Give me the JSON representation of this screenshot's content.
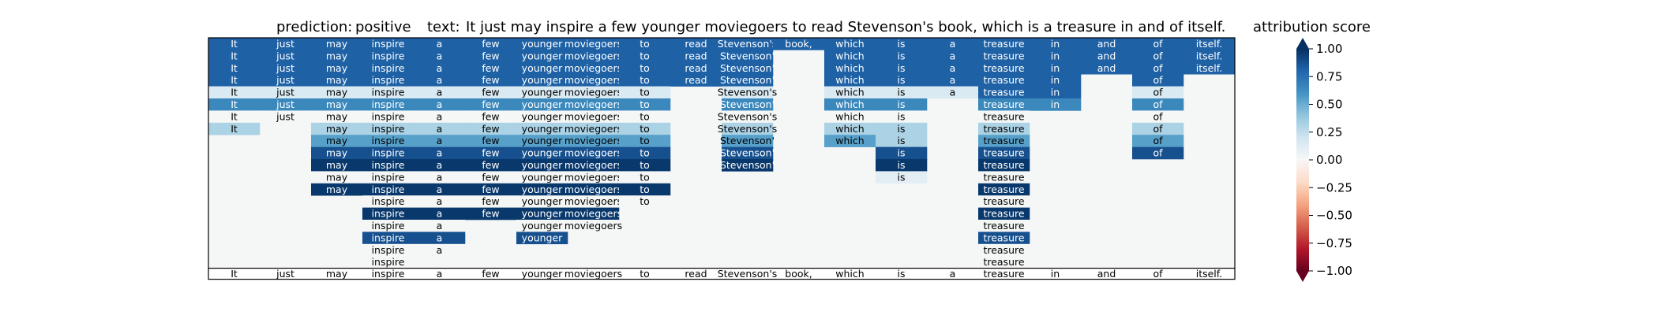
{
  "header": {
    "prediction_label": "prediction:",
    "prediction_value": "positive",
    "text_label": "text:",
    "text_value": "It just may inspire a few younger moviegoers to read Stevenson's book, which is a treasure in and of itself."
  },
  "colorbar": {
    "title": "attribution score",
    "ticks": [
      "1.00",
      "0.75",
      "0.50",
      "0.25",
      "0.00",
      "−0.25",
      "−0.50",
      "−0.75",
      "−1.00"
    ]
  },
  "chart_data": {
    "type": "heatmap",
    "colormap": "RdBu",
    "vmin": -1,
    "vmax": 1,
    "background_color": "#f5f7f7",
    "tokens": [
      "It",
      "just",
      "may",
      "inspire",
      "a",
      "few",
      "younger",
      "moviegoers",
      "to",
      "read",
      "Stevenson's",
      "book,",
      "which",
      "is",
      "a",
      "treasure",
      "in",
      "and",
      "of",
      "itself."
    ],
    "cells": [
      [
        [
          "It",
          0.82
        ],
        [
          "just",
          0.82
        ],
        [
          "may",
          0.82
        ],
        [
          "inspire",
          0.82
        ],
        [
          "a",
          0.82
        ],
        [
          "few",
          0.82
        ],
        [
          "younger",
          0.82
        ],
        [
          "moviegoers",
          0.82
        ],
        [
          "to",
          0.82
        ],
        [
          "read",
          0.82
        ],
        [
          "Stevenson's",
          0.82
        ],
        [
          "book,",
          0.82
        ],
        [
          "which",
          0.82
        ],
        [
          "is",
          0.82
        ],
        [
          "a",
          0.82
        ],
        [
          "treasure",
          0.82
        ],
        [
          "in",
          0.82
        ],
        [
          "and",
          0.82
        ],
        [
          "of",
          0.82
        ],
        [
          "itself.",
          0.82
        ]
      ],
      [
        [
          "It",
          0.82
        ],
        [
          "just",
          0.82
        ],
        [
          "may",
          0.82
        ],
        [
          "inspire",
          0.82
        ],
        [
          "a",
          0.82
        ],
        [
          "few",
          0.82
        ],
        [
          "younger",
          0.82
        ],
        [
          "moviegoers",
          0.82
        ],
        [
          "to",
          0.82
        ],
        [
          "read",
          0.82
        ],
        [
          "Stevenson'",
          0.82
        ],
        null,
        [
          "which",
          0.82
        ],
        [
          "is",
          0.82
        ],
        [
          "a",
          0.82
        ],
        [
          "treasure",
          0.82
        ],
        [
          "in",
          0.82
        ],
        [
          "and",
          0.82
        ],
        [
          "of",
          0.82
        ],
        [
          "itself.",
          0.82
        ]
      ],
      [
        [
          "It",
          0.82
        ],
        [
          "just",
          0.82
        ],
        [
          "may",
          0.82
        ],
        [
          "inspire",
          0.82
        ],
        [
          "a",
          0.82
        ],
        [
          "few",
          0.82
        ],
        [
          "younger",
          0.82
        ],
        [
          "moviegoers",
          0.82
        ],
        [
          "to",
          0.82
        ],
        [
          "read",
          0.82
        ],
        [
          "Stevenson'",
          0.82
        ],
        null,
        [
          "which",
          0.82
        ],
        [
          "is",
          0.82
        ],
        [
          "a",
          0.82
        ],
        [
          "treasure",
          0.82
        ],
        [
          "in",
          0.82
        ],
        [
          "and",
          0.82
        ],
        [
          "of",
          0.82
        ],
        [
          "itself.",
          0.82
        ]
      ],
      [
        [
          "It",
          0.82
        ],
        [
          "just",
          0.82
        ],
        [
          "may",
          0.82
        ],
        [
          "inspire",
          0.82
        ],
        [
          "a",
          0.82
        ],
        [
          "few",
          0.82
        ],
        [
          "younger",
          0.82
        ],
        [
          "moviegoers",
          0.82
        ],
        [
          "to",
          0.82
        ],
        [
          "read",
          0.82
        ],
        [
          "Stevenson'",
          0.82
        ],
        null,
        [
          "which",
          0.82
        ],
        [
          "is",
          0.82
        ],
        [
          "a",
          0.82
        ],
        [
          "treasure",
          0.82
        ],
        [
          "in",
          0.82
        ],
        null,
        [
          "of",
          0.82
        ],
        null
      ],
      [
        [
          "It",
          0.15
        ],
        [
          "just",
          0.15
        ],
        [
          "may",
          0.15
        ],
        [
          "inspire",
          0.15
        ],
        [
          "a",
          0.15
        ],
        [
          "few",
          0.15
        ],
        [
          "younger",
          0.15
        ],
        [
          "moviegoers",
          0.15
        ],
        [
          "to",
          0.15
        ],
        null,
        [
          "Stevenson's",
          0.15
        ],
        null,
        [
          "which",
          0.15
        ],
        [
          "is",
          0.15
        ],
        [
          "a",
          0.15
        ],
        [
          "treasure",
          0.82
        ],
        [
          "in",
          0.82
        ],
        null,
        [
          "of",
          0.15
        ],
        null
      ],
      [
        [
          "It",
          0.65
        ],
        [
          "just",
          0.65
        ],
        [
          "may",
          0.65
        ],
        [
          "inspire",
          0.65
        ],
        [
          "a",
          0.65
        ],
        [
          "few",
          0.65
        ],
        [
          "younger",
          0.65
        ],
        [
          "moviegoers",
          0.65
        ],
        [
          "to",
          0.65
        ],
        null,
        [
          "Stevenson'",
          0.65
        ],
        null,
        [
          "which",
          0.65
        ],
        [
          "is",
          0.65
        ],
        null,
        [
          "treasure",
          0.65
        ],
        [
          "in",
          0.65
        ],
        null,
        [
          "of",
          0.65
        ],
        null
      ],
      [
        [
          "It",
          0.0
        ],
        [
          "just",
          0.0
        ],
        [
          "may",
          0.0
        ],
        [
          "inspire",
          0.0
        ],
        [
          "a",
          0.0
        ],
        [
          "few",
          0.0
        ],
        [
          "younger",
          0.0
        ],
        [
          "moviegoers",
          0.0
        ],
        [
          "to",
          0.0
        ],
        null,
        [
          "Stevenson's",
          0.0
        ],
        null,
        [
          "which",
          0.0
        ],
        [
          "is",
          0.0
        ],
        null,
        [
          "treasure",
          0.0
        ],
        null,
        null,
        [
          "of",
          0.0
        ],
        null
      ],
      [
        [
          "It",
          0.32
        ],
        null,
        [
          "may",
          0.32
        ],
        [
          "inspire",
          0.32
        ],
        [
          "a",
          0.32
        ],
        [
          "few",
          0.32
        ],
        [
          "younger",
          0.32
        ],
        [
          "moviegoers",
          0.32
        ],
        [
          "to",
          0.32
        ],
        null,
        [
          "Stevenson's",
          0.32
        ],
        null,
        [
          "which",
          0.32
        ],
        [
          "is",
          0.32
        ],
        null,
        [
          "treasure",
          0.32
        ],
        null,
        null,
        [
          "of",
          0.32
        ],
        null
      ],
      [
        null,
        null,
        [
          "may",
          0.55
        ],
        [
          "inspire",
          0.55
        ],
        [
          "a",
          0.55
        ],
        [
          "few",
          0.55
        ],
        [
          "younger",
          0.55
        ],
        [
          "moviegoers",
          0.55
        ],
        [
          "to",
          0.55
        ],
        null,
        [
          "Stevenson'",
          0.55
        ],
        null,
        [
          "which",
          0.55
        ],
        [
          "is",
          0.32
        ],
        null,
        [
          "treasure",
          0.55
        ],
        null,
        null,
        [
          "of",
          0.55
        ],
        null
      ],
      [
        null,
        null,
        [
          "may",
          0.88
        ],
        [
          "inspire",
          0.88
        ],
        [
          "a",
          0.88
        ],
        [
          "few",
          0.88
        ],
        [
          "younger",
          0.88
        ],
        [
          "moviegoers",
          0.88
        ],
        [
          "to",
          0.88
        ],
        null,
        [
          "Stevenson'",
          0.88
        ],
        null,
        null,
        [
          "is",
          0.88
        ],
        null,
        [
          "treasure",
          0.88
        ],
        null,
        null,
        [
          "of",
          0.88
        ],
        null
      ],
      [
        null,
        null,
        [
          "may",
          0.97
        ],
        [
          "inspire",
          0.97
        ],
        [
          "a",
          0.97
        ],
        [
          "few",
          0.97
        ],
        [
          "younger",
          0.97
        ],
        [
          "moviegoers",
          0.97
        ],
        [
          "to",
          0.97
        ],
        null,
        [
          "Stevenson'",
          0.97
        ],
        null,
        null,
        [
          "is",
          0.97
        ],
        null,
        [
          "treasure",
          0.97
        ],
        null,
        null,
        null,
        null
      ],
      [
        null,
        null,
        [
          "may",
          0.0
        ],
        [
          "inspire",
          0.0
        ],
        [
          "a",
          0.0
        ],
        [
          "few",
          0.0
        ],
        [
          "younger",
          0.0
        ],
        [
          "moviegoers",
          0.0
        ],
        [
          "to",
          0.0
        ],
        null,
        null,
        null,
        null,
        [
          "is",
          0.1
        ],
        null,
        [
          "treasure",
          0.0
        ],
        null,
        null,
        null,
        null
      ],
      [
        null,
        null,
        [
          "may",
          0.97
        ],
        [
          "inspire",
          0.97
        ],
        [
          "a",
          0.97
        ],
        [
          "few",
          0.97
        ],
        [
          "younger",
          0.97
        ],
        [
          "moviegoers",
          0.97
        ],
        [
          "to",
          0.97
        ],
        null,
        null,
        null,
        null,
        null,
        null,
        [
          "treasure",
          0.97
        ],
        null,
        null,
        null,
        null
      ],
      [
        null,
        null,
        null,
        [
          "inspire",
          0.0
        ],
        [
          "a",
          0.0
        ],
        [
          "few",
          0.0
        ],
        [
          "younger",
          0.0
        ],
        [
          "moviegoers",
          0.0
        ],
        [
          "to",
          0.0
        ],
        null,
        null,
        null,
        null,
        null,
        null,
        [
          "treasure",
          0.0
        ],
        null,
        null,
        null,
        null
      ],
      [
        null,
        null,
        null,
        [
          "inspire",
          0.97
        ],
        [
          "a",
          0.97
        ],
        [
          "few",
          0.97
        ],
        [
          "younger",
          0.97
        ],
        [
          "moviegoers",
          0.97
        ],
        null,
        null,
        null,
        null,
        null,
        null,
        null,
        [
          "treasure",
          0.97
        ],
        null,
        null,
        null,
        null
      ],
      [
        null,
        null,
        null,
        [
          "inspire",
          0.0
        ],
        [
          "a",
          0.0
        ],
        null,
        [
          "younger",
          0.0
        ],
        [
          "moviegoers",
          0.0
        ],
        null,
        null,
        null,
        null,
        null,
        null,
        null,
        [
          "treasure",
          0.0
        ],
        null,
        null,
        null,
        null
      ],
      [
        null,
        null,
        null,
        [
          "inspire",
          0.88
        ],
        [
          "a",
          0.88
        ],
        null,
        [
          "younger",
          0.88
        ],
        null,
        null,
        null,
        null,
        null,
        null,
        null,
        null,
        [
          "treasure",
          0.88
        ],
        null,
        null,
        null,
        null
      ],
      [
        null,
        null,
        null,
        [
          "inspire",
          0.0
        ],
        [
          "a",
          0.0
        ],
        null,
        null,
        null,
        null,
        null,
        null,
        null,
        null,
        null,
        null,
        [
          "treasure",
          0.0
        ],
        null,
        null,
        null,
        null
      ],
      [
        null,
        null,
        null,
        [
          "inspire",
          0.0
        ],
        null,
        null,
        null,
        null,
        null,
        null,
        null,
        null,
        null,
        null,
        null,
        [
          "treasure",
          0.0
        ],
        null,
        null,
        null,
        null
      ]
    ]
  }
}
